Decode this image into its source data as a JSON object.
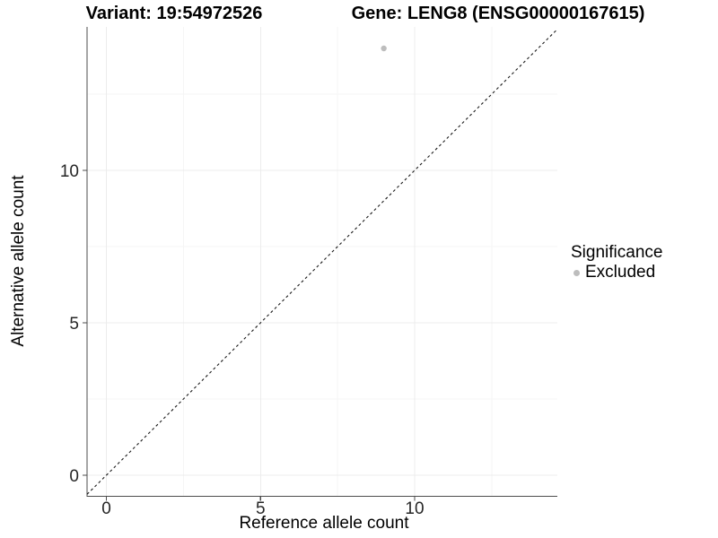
{
  "chart_data": {
    "type": "scatter",
    "title_left": "Variant: 19:54972526",
    "title_right": "Gene: LENG8 (ENSG00000167615)",
    "xlabel": "Reference allele count",
    "ylabel": "Alternative allele count",
    "xticks": [
      0,
      5,
      10
    ],
    "yticks": [
      0,
      5,
      10
    ],
    "minor_xticks": [
      2.5,
      7.5,
      12.5
    ],
    "minor_yticks": [
      2.5,
      7.5,
      12.5
    ],
    "xlim": [
      -0.63,
      14.63
    ],
    "ylim": [
      -0.69,
      14.71
    ],
    "grid": "major+minor",
    "reference_line": {
      "type": "identity",
      "slope": 1,
      "intercept": 0,
      "style": "dashed"
    },
    "series": [
      {
        "name": "Excluded",
        "points": [
          {
            "x": 9,
            "y": 14
          }
        ]
      }
    ],
    "legend": {
      "title": "Significance",
      "position": "right",
      "entries": [
        {
          "label": "Excluded",
          "color": "#bdbdbd"
        }
      ]
    }
  },
  "colors": {
    "background": "#ffffff",
    "title_text": "#000000",
    "axis_text": "#262626",
    "axis_line": "#4d4d4d",
    "grid_major": "#ececec",
    "grid_minor": "#f5f5f5",
    "point": "#bdbdbd",
    "reference_line": "#1a1a1a"
  }
}
